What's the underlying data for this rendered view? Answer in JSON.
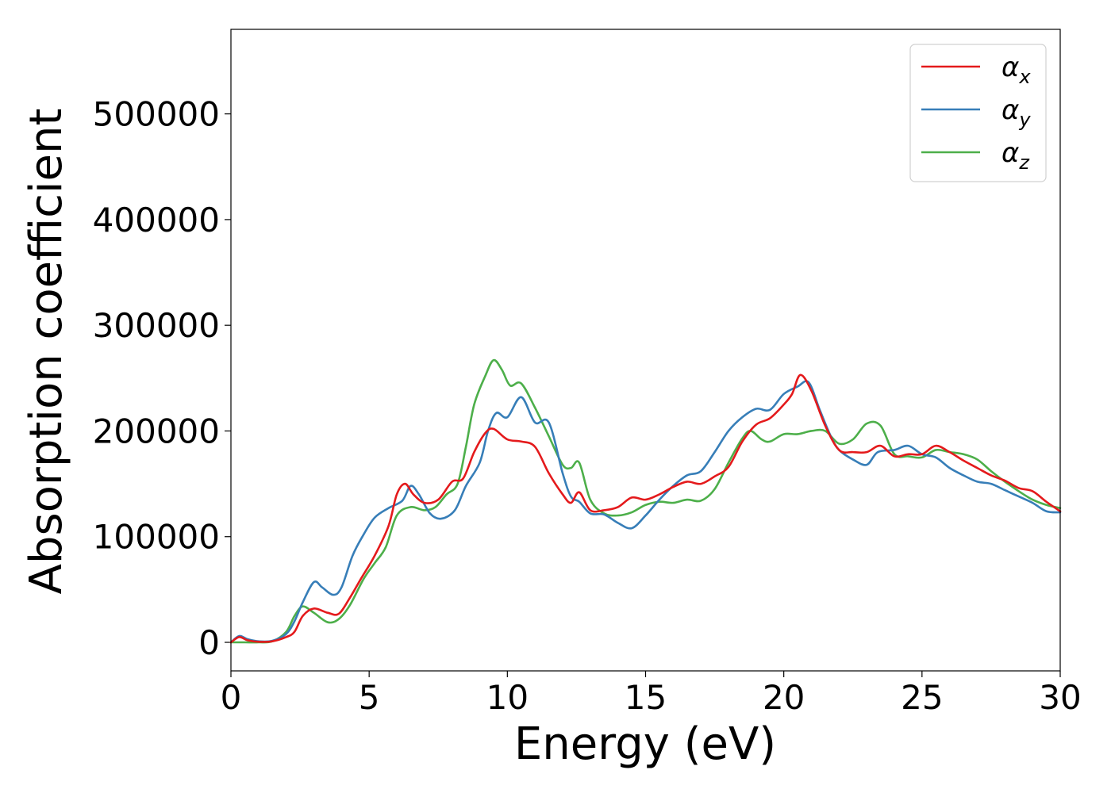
{
  "chart_data": {
    "type": "line",
    "title": "",
    "xlabel": "Energy (eV)",
    "ylabel": "Absorption coefficient",
    "xlim": [
      0,
      30
    ],
    "ylim": [
      -27000,
      580000
    ],
    "xticks": [
      0,
      5,
      10,
      15,
      20,
      25,
      30
    ],
    "yticks": [
      0,
      100000,
      200000,
      300000,
      400000,
      500000
    ],
    "grid": false,
    "legend_position": "top-right",
    "series": [
      {
        "name": "α_x",
        "color": "#e41a1c",
        "points": [
          [
            0,
            0
          ],
          [
            0.3,
            5000
          ],
          [
            0.6,
            2000
          ],
          [
            1,
            500
          ],
          [
            1.5,
            1000
          ],
          [
            2,
            5000
          ],
          [
            2.3,
            10000
          ],
          [
            2.6,
            25000
          ],
          [
            3,
            32000
          ],
          [
            3.5,
            28000
          ],
          [
            3.9,
            27000
          ],
          [
            4.3,
            42000
          ],
          [
            4.7,
            60000
          ],
          [
            5.2,
            82000
          ],
          [
            5.7,
            110000
          ],
          [
            6.0,
            140000
          ],
          [
            6.3,
            150000
          ],
          [
            6.6,
            140000
          ],
          [
            7.0,
            132000
          ],
          [
            7.5,
            135000
          ],
          [
            8.0,
            152000
          ],
          [
            8.4,
            155000
          ],
          [
            8.8,
            180000
          ],
          [
            9.2,
            198000
          ],
          [
            9.5,
            202000
          ],
          [
            10.0,
            192000
          ],
          [
            10.5,
            190000
          ],
          [
            11.0,
            185000
          ],
          [
            11.5,
            160000
          ],
          [
            12.0,
            140000
          ],
          [
            12.3,
            132000
          ],
          [
            12.6,
            142000
          ],
          [
            13.0,
            125000
          ],
          [
            13.5,
            125000
          ],
          [
            14.0,
            128000
          ],
          [
            14.5,
            137000
          ],
          [
            15.0,
            135000
          ],
          [
            15.5,
            140000
          ],
          [
            16.0,
            147000
          ],
          [
            16.5,
            152000
          ],
          [
            17.0,
            150000
          ],
          [
            17.5,
            157000
          ],
          [
            18.0,
            166000
          ],
          [
            18.5,
            190000
          ],
          [
            19.0,
            206000
          ],
          [
            19.5,
            212000
          ],
          [
            20.0,
            225000
          ],
          [
            20.3,
            235000
          ],
          [
            20.6,
            253000
          ],
          [
            21.0,
            238000
          ],
          [
            21.5,
            205000
          ],
          [
            22.0,
            182000
          ],
          [
            22.5,
            180000
          ],
          [
            23.0,
            180000
          ],
          [
            23.5,
            186000
          ],
          [
            24.0,
            176000
          ],
          [
            24.5,
            178000
          ],
          [
            25.0,
            178000
          ],
          [
            25.5,
            186000
          ],
          [
            26.0,
            180000
          ],
          [
            26.5,
            172000
          ],
          [
            27.0,
            165000
          ],
          [
            27.5,
            158000
          ],
          [
            28.0,
            153000
          ],
          [
            28.5,
            146000
          ],
          [
            29.0,
            143000
          ],
          [
            29.5,
            133000
          ],
          [
            30,
            124000
          ]
        ]
      },
      {
        "name": "α_y",
        "color": "#377eb8",
        "points": [
          [
            0,
            0
          ],
          [
            0.3,
            6000
          ],
          [
            0.6,
            3000
          ],
          [
            1,
            1000
          ],
          [
            1.5,
            1500
          ],
          [
            2,
            8000
          ],
          [
            2.3,
            20000
          ],
          [
            2.6,
            38000
          ],
          [
            3.0,
            57000
          ],
          [
            3.3,
            52000
          ],
          [
            3.7,
            45000
          ],
          [
            4.0,
            52000
          ],
          [
            4.4,
            82000
          ],
          [
            4.8,
            102000
          ],
          [
            5.2,
            118000
          ],
          [
            5.7,
            127000
          ],
          [
            6.2,
            134000
          ],
          [
            6.5,
            148000
          ],
          [
            6.8,
            140000
          ],
          [
            7.2,
            122000
          ],
          [
            7.6,
            117000
          ],
          [
            8.1,
            125000
          ],
          [
            8.5,
            148000
          ],
          [
            9.0,
            170000
          ],
          [
            9.3,
            200000
          ],
          [
            9.6,
            217000
          ],
          [
            10.0,
            213000
          ],
          [
            10.5,
            232000
          ],
          [
            11.0,
            208000
          ],
          [
            11.5,
            208000
          ],
          [
            12.0,
            160000
          ],
          [
            12.3,
            138000
          ],
          [
            12.6,
            133000
          ],
          [
            13.0,
            122000
          ],
          [
            13.5,
            121000
          ],
          [
            14.0,
            113000
          ],
          [
            14.5,
            108000
          ],
          [
            15.0,
            120000
          ],
          [
            15.5,
            135000
          ],
          [
            16.0,
            148000
          ],
          [
            16.5,
            158000
          ],
          [
            17.0,
            162000
          ],
          [
            17.5,
            180000
          ],
          [
            18.0,
            200000
          ],
          [
            18.5,
            213000
          ],
          [
            19.0,
            221000
          ],
          [
            19.5,
            220000
          ],
          [
            20.0,
            235000
          ],
          [
            20.5,
            242000
          ],
          [
            20.9,
            246000
          ],
          [
            21.3,
            220000
          ],
          [
            21.7,
            195000
          ],
          [
            22.0,
            182000
          ],
          [
            22.5,
            173000
          ],
          [
            23.0,
            168000
          ],
          [
            23.4,
            180000
          ],
          [
            24.0,
            182000
          ],
          [
            24.5,
            186000
          ],
          [
            25.0,
            178000
          ],
          [
            25.5,
            175000
          ],
          [
            26.0,
            165000
          ],
          [
            26.5,
            158000
          ],
          [
            27.0,
            152000
          ],
          [
            27.5,
            150000
          ],
          [
            28.0,
            144000
          ],
          [
            28.5,
            138000
          ],
          [
            29.0,
            132000
          ],
          [
            29.5,
            124000
          ],
          [
            30,
            123000
          ]
        ]
      },
      {
        "name": "α_z",
        "color": "#4daf4a",
        "points": [
          [
            0,
            0
          ],
          [
            0.5,
            0
          ],
          [
            1,
            0
          ],
          [
            1.5,
            1000
          ],
          [
            2,
            10000
          ],
          [
            2.3,
            25000
          ],
          [
            2.6,
            34000
          ],
          [
            3.0,
            28000
          ],
          [
            3.5,
            19000
          ],
          [
            3.9,
            22000
          ],
          [
            4.3,
            35000
          ],
          [
            4.8,
            60000
          ],
          [
            5.2,
            75000
          ],
          [
            5.6,
            90000
          ],
          [
            6.0,
            120000
          ],
          [
            6.5,
            128000
          ],
          [
            7.0,
            125000
          ],
          [
            7.4,
            128000
          ],
          [
            7.8,
            140000
          ],
          [
            8.2,
            150000
          ],
          [
            8.5,
            185000
          ],
          [
            8.8,
            225000
          ],
          [
            9.2,
            252000
          ],
          [
            9.5,
            267000
          ],
          [
            9.8,
            258000
          ],
          [
            10.1,
            243000
          ],
          [
            10.5,
            245000
          ],
          [
            11.0,
            222000
          ],
          [
            11.5,
            195000
          ],
          [
            12.0,
            168000
          ],
          [
            12.3,
            165000
          ],
          [
            12.6,
            170000
          ],
          [
            13.0,
            135000
          ],
          [
            13.5,
            122000
          ],
          [
            14.0,
            120000
          ],
          [
            14.5,
            123000
          ],
          [
            15.0,
            130000
          ],
          [
            15.5,
            133000
          ],
          [
            16.0,
            132000
          ],
          [
            16.5,
            135000
          ],
          [
            17.0,
            134000
          ],
          [
            17.5,
            145000
          ],
          [
            18.0,
            170000
          ],
          [
            18.5,
            193000
          ],
          [
            18.8,
            200000
          ],
          [
            19.2,
            192000
          ],
          [
            19.5,
            190000
          ],
          [
            20.0,
            197000
          ],
          [
            20.5,
            197000
          ],
          [
            21.0,
            200000
          ],
          [
            21.5,
            200000
          ],
          [
            22.0,
            188000
          ],
          [
            22.5,
            192000
          ],
          [
            23.0,
            207000
          ],
          [
            23.5,
            205000
          ],
          [
            24.0,
            178000
          ],
          [
            24.5,
            176000
          ],
          [
            25.0,
            175000
          ],
          [
            25.5,
            182000
          ],
          [
            26.0,
            180000
          ],
          [
            26.5,
            178000
          ],
          [
            27.0,
            173000
          ],
          [
            27.5,
            162000
          ],
          [
            28.0,
            152000
          ],
          [
            28.5,
            143000
          ],
          [
            29.0,
            135000
          ],
          [
            29.5,
            130000
          ],
          [
            30,
            127000
          ]
        ]
      }
    ]
  },
  "legend": {
    "items": [
      {
        "symbol": "α",
        "sub": "x",
        "color": "#e41a1c"
      },
      {
        "symbol": "α",
        "sub": "y",
        "color": "#377eb8"
      },
      {
        "symbol": "α",
        "sub": "z",
        "color": "#4daf4a"
      }
    ]
  }
}
